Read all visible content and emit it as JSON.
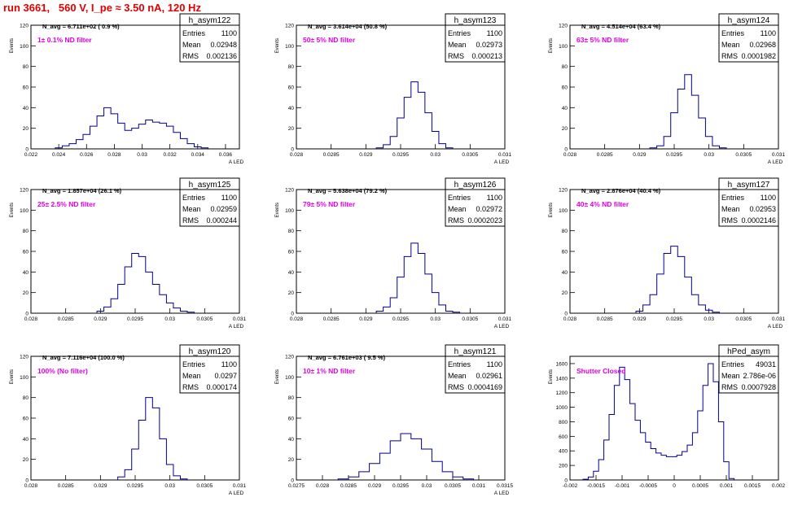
{
  "page": {
    "title": "run 3661,   560 V, I_pe ≈ 3.50 nA, 120 Hz"
  },
  "stat_labels": {
    "entries": "Entries",
    "mean": "Mean",
    "rms": "RMS"
  },
  "chart_data": [
    {
      "type": "bar",
      "name": "h_asym122",
      "navg": "N_avg = 6.711e+02 ( 0.9 %)",
      "filter": "1± 0.1% ND filter",
      "entries": "1100",
      "mean": "0.02948",
      "rms": "0.002136",
      "ylabel": "Events",
      "xlabel": "A_LED",
      "xlim": [
        0.022,
        0.037
      ],
      "ylim": [
        0,
        120
      ],
      "xticks": [
        0.022,
        0.024,
        0.026,
        0.028,
        0.03,
        0.032,
        0.034,
        0.036
      ],
      "xtick_labels": [
        "0.022",
        "0.024",
        "0.026",
        "0.028",
        "0.03",
        "0.032",
        "0.034",
        "0.036"
      ],
      "yticks": [
        0,
        20,
        40,
        60,
        80,
        100,
        120
      ],
      "x": [
        0.024,
        0.0245,
        0.025,
        0.0255,
        0.026,
        0.0265,
        0.027,
        0.0275,
        0.028,
        0.0285,
        0.029,
        0.0295,
        0.03,
        0.0305,
        0.031,
        0.0315,
        0.032,
        0.0325,
        0.033,
        0.0335,
        0.034,
        0.0345
      ],
      "values": [
        1,
        3,
        5,
        9,
        14,
        22,
        32,
        40,
        34,
        25,
        18,
        20,
        24,
        28,
        26,
        25,
        22,
        16,
        10,
        5,
        2,
        1
      ]
    },
    {
      "type": "bar",
      "name": "h_asym123",
      "navg": "N_avg = 3.614e+04 (50.8 %)",
      "filter": "50± 5% ND filter",
      "entries": "1100",
      "mean": "0.02973",
      "rms": "0.000213",
      "ylabel": "Events",
      "xlabel": "A_LED",
      "xlim": [
        0.028,
        0.031
      ],
      "ylim": [
        0,
        120
      ],
      "xticks": [
        0.028,
        0.0285,
        0.029,
        0.0295,
        0.03,
        0.0305,
        0.031
      ],
      "xtick_labels": [
        "0.028",
        "0.0285",
        "0.029",
        "0.0295",
        "0.03",
        "0.0305",
        "0.031"
      ],
      "yticks": [
        0,
        20,
        40,
        60,
        80,
        100,
        120
      ],
      "x": [
        0.0292,
        0.0293,
        0.0294,
        0.0295,
        0.0296,
        0.0297,
        0.0298,
        0.0299,
        0.03,
        0.0301,
        0.0302
      ],
      "values": [
        1,
        4,
        12,
        30,
        50,
        65,
        55,
        35,
        17,
        5,
        1
      ]
    },
    {
      "type": "bar",
      "name": "h_asym124",
      "navg": "N_avg = 4.514e+04 (63.4 %)",
      "filter": "63± 5% ND filter",
      "entries": "1100",
      "mean": "0.02968",
      "rms": "0.0001982",
      "ylabel": "Events",
      "xlabel": "A_LED",
      "xlim": [
        0.028,
        0.031
      ],
      "ylim": [
        0,
        120
      ],
      "xticks": [
        0.028,
        0.0285,
        0.029,
        0.0295,
        0.03,
        0.0305,
        0.031
      ],
      "xtick_labels": [
        "0.028",
        "0.0285",
        "0.029",
        "0.0295",
        "0.03",
        "0.0305",
        "0.031"
      ],
      "yticks": [
        0,
        20,
        40,
        60,
        80,
        100,
        120
      ],
      "x": [
        0.0292,
        0.0293,
        0.0294,
        0.0295,
        0.0296,
        0.0297,
        0.0298,
        0.0299,
        0.03,
        0.0301,
        0.0302
      ],
      "values": [
        1,
        3,
        12,
        35,
        58,
        72,
        52,
        30,
        12,
        3,
        1
      ]
    },
    {
      "type": "bar",
      "name": "h_asym125",
      "navg": "N_avg = 1.857e+04 (26.1 %)",
      "filter": "25± 2.5% ND filter",
      "entries": "1100",
      "mean": "0.02959",
      "rms": "0.000244",
      "ylabel": "Events",
      "xlabel": "A_LED",
      "xlim": [
        0.028,
        0.031
      ],
      "ylim": [
        0,
        120
      ],
      "xticks": [
        0.028,
        0.0285,
        0.029,
        0.0295,
        0.03,
        0.0305,
        0.031
      ],
      "xtick_labels": [
        "0.028",
        "0.0285",
        "0.029",
        "0.0295",
        "0.03",
        "0.0305",
        "0.031"
      ],
      "yticks": [
        0,
        20,
        40,
        60,
        80,
        100,
        120
      ],
      "x": [
        0.029,
        0.0291,
        0.0292,
        0.0293,
        0.0294,
        0.0295,
        0.0296,
        0.0297,
        0.0298,
        0.0299,
        0.03,
        0.0301,
        0.0302,
        0.0303
      ],
      "values": [
        2,
        6,
        14,
        28,
        45,
        58,
        55,
        40,
        28,
        18,
        10,
        5,
        2,
        1
      ]
    },
    {
      "type": "bar",
      "name": "h_asym126",
      "navg": "N_avg = 5.638e+04 (79.2 %)",
      "filter": "79± 5% ND filter",
      "entries": "1100",
      "mean": "0.02972",
      "rms": "0.0002023",
      "ylabel": "Events",
      "xlabel": "A_LED",
      "xlim": [
        0.028,
        0.031
      ],
      "ylim": [
        0,
        120
      ],
      "xticks": [
        0.028,
        0.0285,
        0.029,
        0.0295,
        0.03,
        0.0305,
        0.031
      ],
      "xtick_labels": [
        "0.028",
        "0.0285",
        "0.029",
        "0.0295",
        "0.03",
        "0.0305",
        "0.031"
      ],
      "yticks": [
        0,
        20,
        40,
        60,
        80,
        100,
        120
      ],
      "x": [
        0.0292,
        0.0293,
        0.0294,
        0.0295,
        0.0296,
        0.0297,
        0.0298,
        0.0299,
        0.03,
        0.0301,
        0.0302,
        0.0303
      ],
      "values": [
        2,
        6,
        15,
        35,
        55,
        68,
        58,
        38,
        20,
        8,
        2,
        1
      ]
    },
    {
      "type": "bar",
      "name": "h_asym127",
      "navg": "N_avg = 2.876e+04 (40.4 %)",
      "filter": "40± 4% ND filter",
      "entries": "1100",
      "mean": "0.02953",
      "rms": "0.0002146",
      "ylabel": "Events",
      "xlabel": "A_LED",
      "xlim": [
        0.028,
        0.031
      ],
      "ylim": [
        0,
        120
      ],
      "xticks": [
        0.028,
        0.0285,
        0.029,
        0.0295,
        0.03,
        0.0305,
        0.031
      ],
      "xtick_labels": [
        "0.028",
        "0.0285",
        "0.029",
        "0.0295",
        "0.03",
        "0.0305",
        "0.031"
      ],
      "yticks": [
        0,
        20,
        40,
        60,
        80,
        100,
        120
      ],
      "x": [
        0.029,
        0.0291,
        0.0292,
        0.0293,
        0.0294,
        0.0295,
        0.0296,
        0.0297,
        0.0298,
        0.0299,
        0.03,
        0.0301
      ],
      "values": [
        2,
        8,
        18,
        38,
        58,
        65,
        55,
        35,
        18,
        8,
        3,
        1
      ]
    },
    {
      "type": "bar",
      "name": "h_asym120",
      "navg": "N_avg = 7.116e+04 (100.0 %)",
      "filter": "100% (No filter)",
      "entries": "1100",
      "mean": "0.0297",
      "rms": "0.000174",
      "ylabel": "Events",
      "xlabel": "A_LED",
      "xlim": [
        0.028,
        0.031
      ],
      "ylim": [
        0,
        120
      ],
      "xticks": [
        0.028,
        0.0285,
        0.029,
        0.0295,
        0.03,
        0.0305,
        0.031
      ],
      "xtick_labels": [
        "0.028",
        "0.0285",
        "0.029",
        "0.0295",
        "0.03",
        "0.0305",
        "0.031"
      ],
      "yticks": [
        0,
        20,
        40,
        60,
        80,
        100,
        120
      ],
      "x": [
        0.0293,
        0.0294,
        0.0295,
        0.0296,
        0.0297,
        0.0298,
        0.0299,
        0.03,
        0.0301,
        0.0302
      ],
      "values": [
        3,
        10,
        30,
        58,
        80,
        70,
        40,
        15,
        4,
        1
      ]
    },
    {
      "type": "bar",
      "name": "h_asym121",
      "navg": "N_avg = 6.761e+03 ( 9.5 %)",
      "filter": "10± 1% ND filter",
      "entries": "1100",
      "mean": "0.02961",
      "rms": "0.0004169",
      "ylabel": "Events",
      "xlabel": "A_LED",
      "xlim": [
        0.0275,
        0.0315
      ],
      "ylim": [
        0,
        120
      ],
      "xticks": [
        0.0275,
        0.028,
        0.0285,
        0.029,
        0.0295,
        0.03,
        0.0305,
        0.031,
        0.0315
      ],
      "xtick_labels": [
        "0.0275",
        "0.028",
        "0.0285",
        "0.029",
        "0.0295",
        "0.03",
        "0.0305",
        "0.031",
        "0.0315"
      ],
      "yticks": [
        0,
        20,
        40,
        60,
        80,
        100,
        120
      ],
      "x": [
        0.0284,
        0.0286,
        0.0288,
        0.029,
        0.0292,
        0.0294,
        0.0296,
        0.0298,
        0.03,
        0.0302,
        0.0304,
        0.0306,
        0.0308
      ],
      "values": [
        1,
        3,
        8,
        16,
        26,
        38,
        45,
        40,
        30,
        18,
        8,
        3,
        1
      ]
    },
    {
      "type": "bar",
      "name": "hPed_asym",
      "navg": "",
      "filter": "Shutter Closed",
      "entries": "49031",
      "mean": "2.786e-06",
      "rms": "0.0007928",
      "ylabel": "Events",
      "xlabel": "",
      "xlim": [
        -0.002,
        0.002
      ],
      "ylim": [
        0,
        1700
      ],
      "xticks": [
        -0.002,
        -0.0015,
        -0.001,
        -0.0005,
        0,
        0.0005,
        0.001,
        0.0015,
        0.002
      ],
      "xtick_labels": [
        "-0.002",
        "-0.0015",
        "-0.001",
        "-0.0005",
        "0",
        "0.0005",
        "0.001",
        "0.0015",
        "0.002"
      ],
      "yticks": [
        0,
        200,
        400,
        600,
        800,
        1000,
        1200,
        1400,
        1600
      ],
      "x": [
        -0.0017,
        -0.0016,
        -0.0015,
        -0.0014,
        -0.0013,
        -0.0012,
        -0.0011,
        -0.001,
        -0.0009,
        -0.0008,
        -0.0007,
        -0.0006,
        -0.0005,
        -0.0004,
        -0.0003,
        -0.0002,
        -0.0001,
        0.0,
        0.0001,
        0.0002,
        0.0003,
        0.0004,
        0.0005,
        0.0006,
        0.0007,
        0.0008,
        0.0009,
        0.001,
        0.0011
      ],
      "values": [
        10,
        40,
        120,
        280,
        550,
        900,
        1300,
        1550,
        1380,
        1050,
        820,
        650,
        520,
        430,
        370,
        340,
        320,
        320,
        340,
        390,
        480,
        650,
        950,
        1300,
        1600,
        1350,
        800,
        250,
        20
      ]
    }
  ]
}
